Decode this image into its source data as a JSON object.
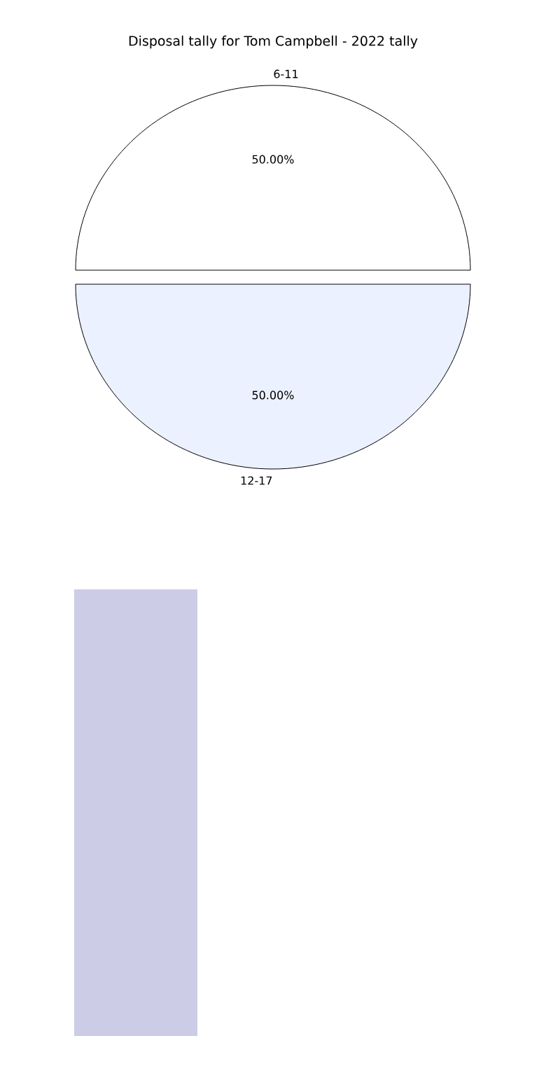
{
  "chart_data": {
    "type": "pie",
    "title": "Disposal tally for Tom Campbell - 2022 tally",
    "categories": [
      "6-11",
      "12-17"
    ],
    "values": [
      50,
      50
    ],
    "colors": [
      "#ffffff",
      "#ebf1fe"
    ],
    "value_labels": [
      "50.00%",
      "50.00%"
    ]
  }
}
